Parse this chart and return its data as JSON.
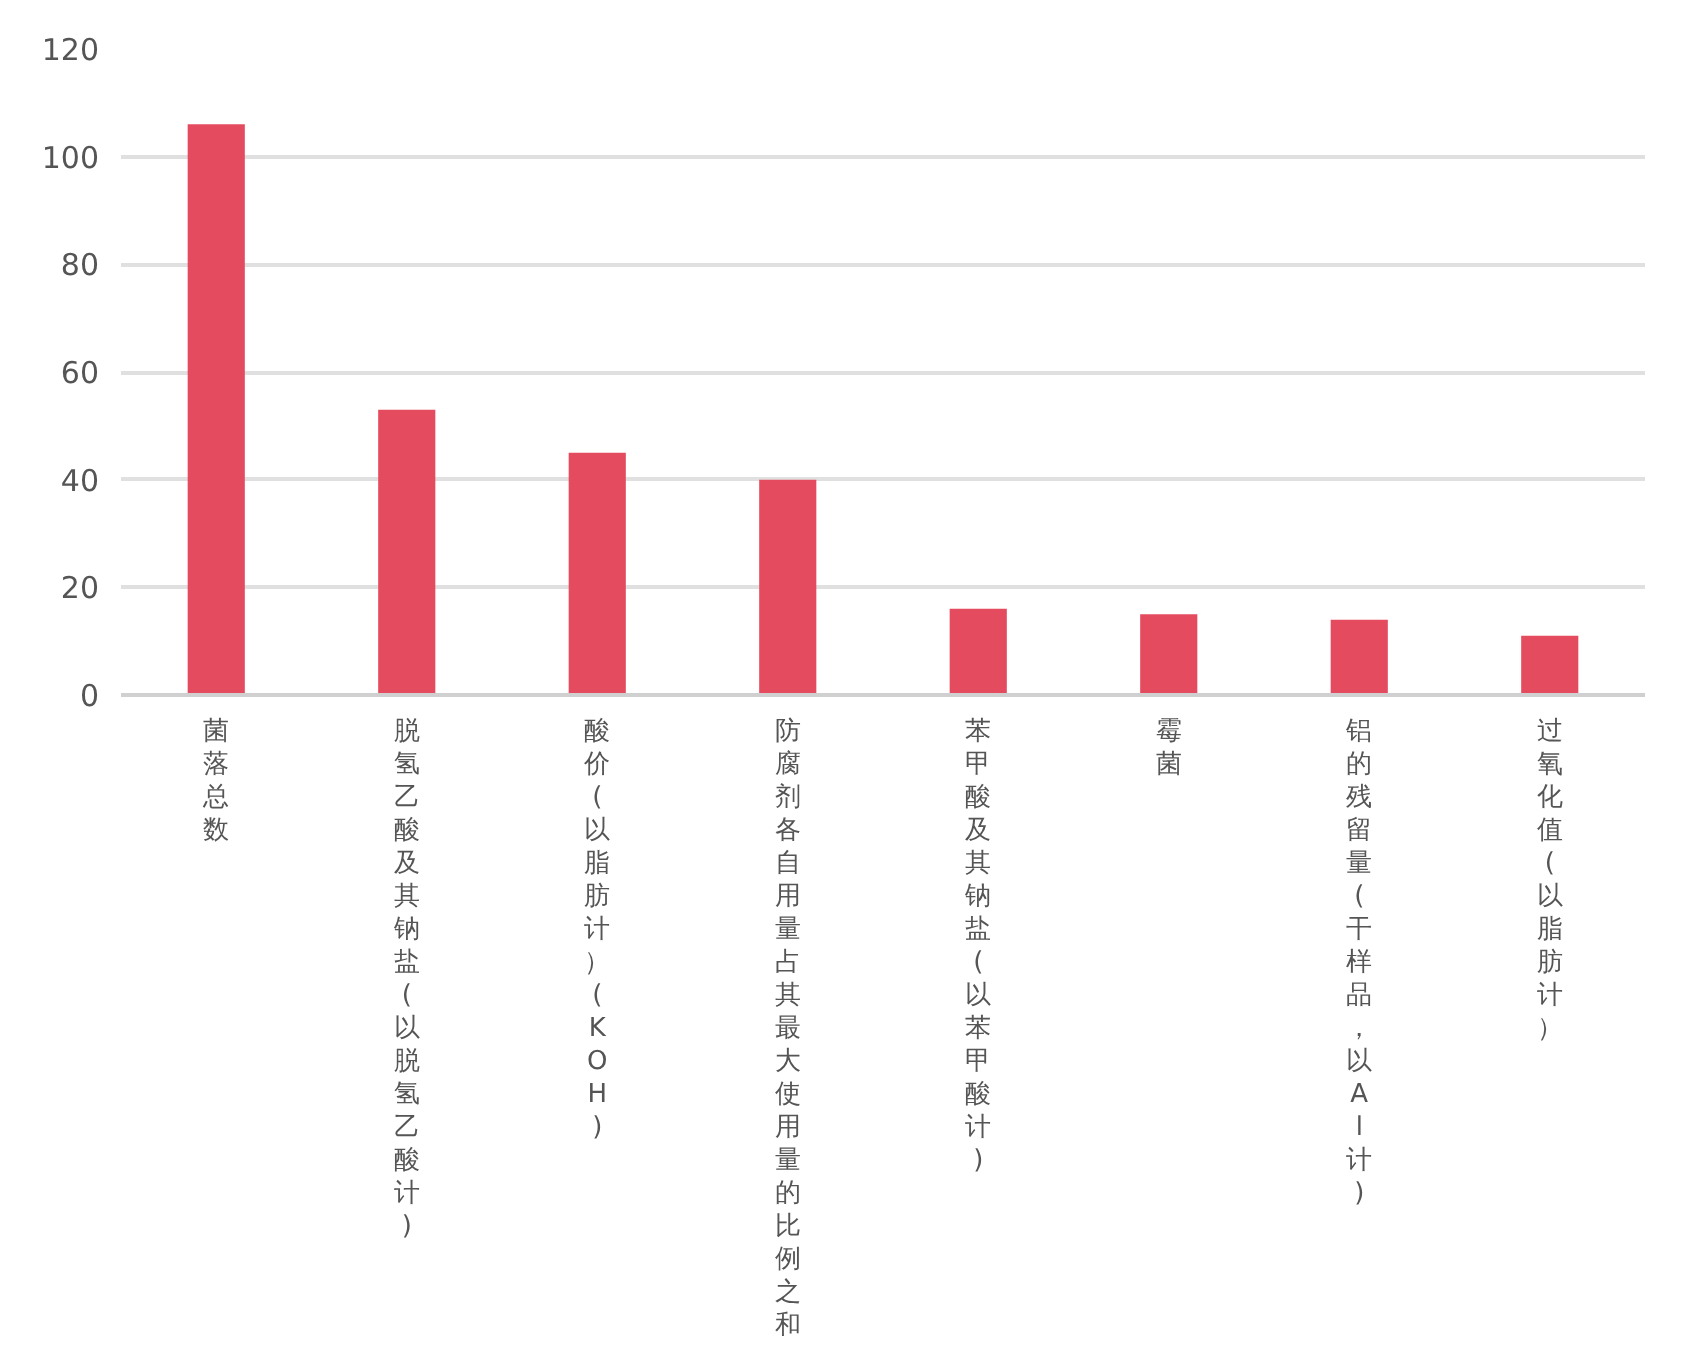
{
  "chart_data": {
    "type": "bar",
    "categories": [
      "菌落总数",
      "脱氢乙酸及其钠盐(以脱氢乙酸计)",
      "酸价(以脂肪计）(KOH)",
      "防腐剂各自用量占其最大使用量的比例之和",
      "苯甲酸及其钠盐(以苯甲酸计)",
      "霉菌",
      "铝的残留量(干样品，以Al计)",
      "过氧化值(以脂肪计）"
    ],
    "values": [
      106,
      53,
      45,
      40,
      16,
      15,
      14,
      11
    ],
    "color": "#e54b5e",
    "ylim": [
      0,
      120
    ],
    "yticks": [
      0,
      20,
      40,
      60,
      80,
      100,
      120
    ],
    "grid": "y"
  }
}
